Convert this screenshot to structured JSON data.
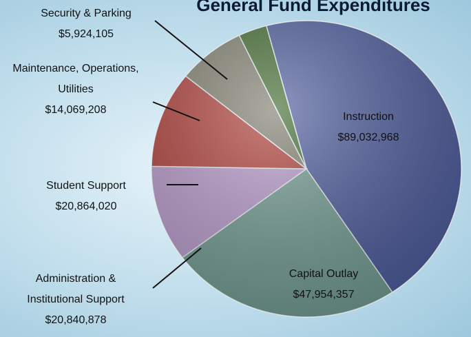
{
  "chart_data": {
    "type": "pie",
    "title": "General Fund Expenditures",
    "categories": [
      "Instruction",
      "Capital Outlay",
      "Administration & Institutional Support",
      "Student Support",
      "Maintenance, Operations, Utilities",
      "Security & Parking"
    ],
    "values": [
      89032968,
      47954357,
      20840878,
      20864020,
      14069208,
      5924105
    ],
    "value_labels": [
      "$89,032,968",
      "$47,954,357",
      "$20,840,878",
      "$20,864,020",
      "$14,069,208",
      "$5,924,105"
    ],
    "colors": [
      "#4d5c9c",
      "#729c92",
      "#b89bcb",
      "#b0403a",
      "#807f70",
      "#416b30"
    ]
  }
}
